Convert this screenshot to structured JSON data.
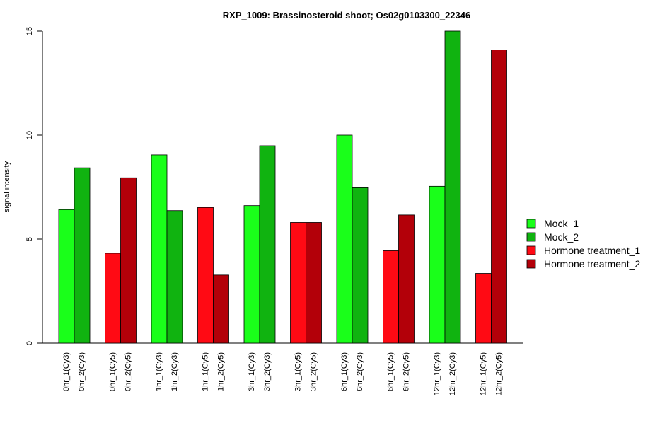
{
  "chart_data": {
    "type": "bar",
    "title": "RXP_1009: Brassinosteroid shoot; Os02g0103300_22346",
    "xlabel": "",
    "ylabel": "signal intensity",
    "ylim": [
      0,
      15
    ],
    "yticks": [
      0,
      5,
      10,
      15
    ],
    "grid": false,
    "legend_position": "right",
    "series": [
      {
        "name": "Mock_1",
        "color": "#1aff1a"
      },
      {
        "name": "Mock_2",
        "color": "#10b310"
      },
      {
        "name": "Hormone treatment_1",
        "color": "#ff0a14"
      },
      {
        "name": "Hormone treatment_2",
        "color": "#b30009"
      }
    ],
    "groups": [
      {
        "bars": [
          {
            "label": "0hr_1(Cy3)",
            "value": 6.42,
            "series": 0
          },
          {
            "label": "0hr_2(Cy3)",
            "value": 8.43,
            "series": 1
          }
        ]
      },
      {
        "bars": [
          {
            "label": "0hr_1(Cy5)",
            "value": 4.32,
            "series": 2
          },
          {
            "label": "0hr_2(Cy5)",
            "value": 7.95,
            "series": 3
          }
        ]
      },
      {
        "bars": [
          {
            "label": "1hr_1(Cy3)",
            "value": 9.05,
            "series": 0
          },
          {
            "label": "1hr_2(Cy3)",
            "value": 6.37,
            "series": 1
          }
        ]
      },
      {
        "bars": [
          {
            "label": "1hr_1(Cy5)",
            "value": 6.52,
            "series": 2
          },
          {
            "label": "1hr_2(Cy5)",
            "value": 3.27,
            "series": 3
          }
        ]
      },
      {
        "bars": [
          {
            "label": "3hr_1(Cy3)",
            "value": 6.61,
            "series": 0
          },
          {
            "label": "3hr_2(Cy3)",
            "value": 9.49,
            "series": 1
          }
        ]
      },
      {
        "bars": [
          {
            "label": "3hr_1(Cy5)",
            "value": 5.8,
            "series": 2
          },
          {
            "label": "3hr_2(Cy5)",
            "value": 5.8,
            "series": 3
          }
        ]
      },
      {
        "bars": [
          {
            "label": "6hr_1(Cy3)",
            "value": 10.0,
            "series": 0
          },
          {
            "label": "6hr_2(Cy3)",
            "value": 7.47,
            "series": 1
          }
        ]
      },
      {
        "bars": [
          {
            "label": "6hr_1(Cy5)",
            "value": 4.44,
            "series": 2
          },
          {
            "label": "6hr_2(Cy5)",
            "value": 6.16,
            "series": 3
          }
        ]
      },
      {
        "bars": [
          {
            "label": "12hr_1(Cy3)",
            "value": 7.54,
            "series": 0
          },
          {
            "label": "12hr_2(Cy3)",
            "value": 15.0,
            "series": 1
          }
        ]
      },
      {
        "bars": [
          {
            "label": "12hr_1(Cy5)",
            "value": 3.35,
            "series": 2
          },
          {
            "label": "12hr_2(Cy5)",
            "value": 14.1,
            "series": 3
          }
        ]
      }
    ]
  }
}
